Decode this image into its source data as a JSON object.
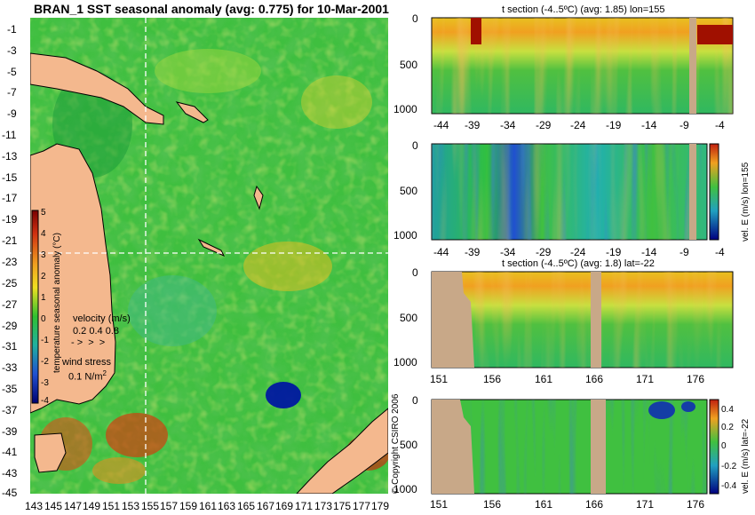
{
  "map": {
    "title": "BRAN_1 SST seasonal anomaly (avg: 0.775) for 10-Mar-2001",
    "lat_ticks": [
      "-1",
      "-3",
      "-5",
      "-7",
      "-9",
      "-11",
      "-13",
      "-15",
      "-17",
      "-19",
      "-21",
      "-23",
      "-25",
      "-27",
      "-29",
      "-31",
      "-33",
      "-35",
      "-37",
      "-39",
      "-41",
      "-43",
      "-45"
    ],
    "lon_ticks": [
      "143",
      "145",
      "147",
      "149",
      "151",
      "153",
      "155",
      "157",
      "159",
      "161",
      "163",
      "165",
      "167",
      "169",
      "171",
      "173",
      "175",
      "177",
      "179"
    ],
    "colorbar_ticks": [
      "5",
      "4",
      "3",
      "2",
      "1",
      "0",
      "-1",
      "-2",
      "-3",
      "-4"
    ],
    "colorbar_label": "temperature seasonal anomaly (°C)",
    "velocity_label": "velocity (m/s)",
    "velocity_scale": "0.2 0.4 0.8",
    "wind_label": "wind stress",
    "wind_scale": "0.1 N/m",
    "wind_scale_sup": "2",
    "copyright": "© Copyright CSIRO 2006",
    "section_lon": 155,
    "section_lat": -22
  },
  "panels": {
    "p1": {
      "title": "t section (-4..5ºC) (avg: 1.85) lon=155"
    },
    "p3": {
      "title": "t section (-4..5ºC) (avg: 1.8) lat=-22"
    },
    "cb2_label": "vel. E (m/s) lon=155",
    "cb4_label": "vel. E (m/s) lat=-22",
    "cb4_ticks": [
      "0.4",
      "0.2",
      "0",
      "-0.2",
      "-0.4"
    ]
  },
  "chart_data": [
    {
      "type": "heatmap",
      "title": "BRAN_1 SST seasonal anomaly (avg: 0.775) for 10-Mar-2001",
      "x_axis": "longitude",
      "xlim": [
        143,
        180
      ],
      "y_axis": "latitude",
      "ylim": [
        -45,
        0
      ],
      "colorbar": {
        "label": "temperature seasonal anomaly (°C)",
        "range": [
          -4,
          5
        ]
      },
      "average": 0.775,
      "overlays": [
        "velocity vectors",
        "wind stress vectors",
        "coastline",
        "section lines lon=155, lat=-22"
      ]
    },
    {
      "type": "heatmap",
      "title": "t section (-4..5ºC) (avg: 1.85) lon=155",
      "x_axis": "latitude",
      "x_ticks": [
        -44,
        -39,
        -34,
        -29,
        -24,
        -19,
        -14,
        -9,
        -4
      ],
      "y_ticks": [
        0,
        500,
        1000
      ],
      "average": 1.85
    },
    {
      "type": "heatmap",
      "title": "vel. E (m/s) lon=155",
      "x_ticks": [
        -44,
        -39,
        -34,
        -29,
        -24,
        -19,
        -14,
        -9,
        -4
      ],
      "y_ticks": [
        0,
        500,
        1000
      ]
    },
    {
      "type": "heatmap",
      "title": "t section (-4..5ºC) (avg: 1.8) lat=-22",
      "x_axis": "longitude",
      "x_ticks": [
        151,
        156,
        161,
        166,
        171,
        176
      ],
      "y_ticks": [
        0,
        500,
        1000
      ],
      "average": 1.8
    },
    {
      "type": "heatmap",
      "title": "vel. E (m/s) lat=-22",
      "x_ticks": [
        151,
        156,
        161,
        166,
        171,
        176
      ],
      "y_ticks": [
        0,
        500,
        1000
      ],
      "colorbar": {
        "label": "vel. E (m/s) lat=-22",
        "ticks": [
          0.4,
          0.2,
          0,
          -0.2,
          -0.4
        ]
      }
    }
  ]
}
